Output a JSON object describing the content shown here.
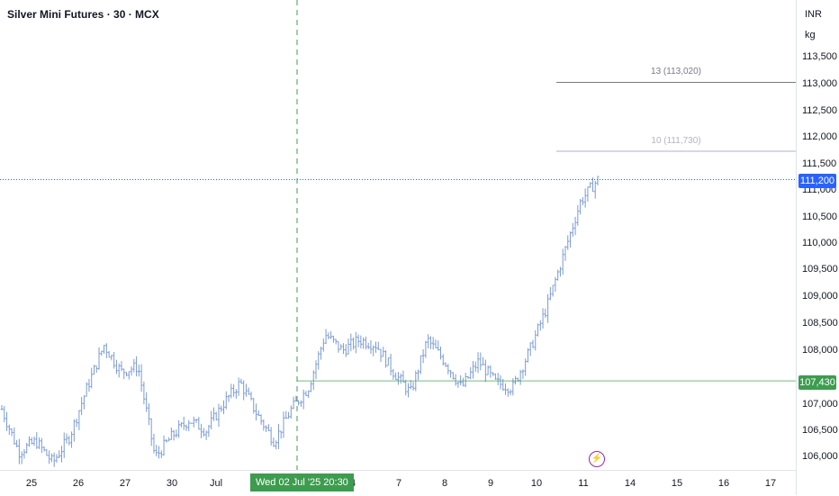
{
  "header": {
    "title": "Silver Mini Futures · 30 · MCX"
  },
  "price_axis": {
    "currency": "INR",
    "unit": "kg",
    "ticks": [
      "113,500",
      "113,000",
      "112,500",
      "112,000",
      "111,500",
      "111,000",
      "110,500",
      "110,000",
      "109,500",
      "109,000",
      "108,500",
      "108,000",
      "107,000",
      "106,500",
      "106,000"
    ],
    "current_price_label": "111,200",
    "crosshair_price_label": "107,430"
  },
  "time_axis": {
    "ticks": [
      "25",
      "26",
      "27",
      "30",
      "Jul",
      "4",
      "7",
      "8",
      "9",
      "10",
      "11",
      "14",
      "15",
      "16",
      "17"
    ],
    "crosshair_time_label": "Wed 02 Jul '25   20:30"
  },
  "horizontal_lines": [
    {
      "label": "13 (113,020)",
      "price": 113020
    },
    {
      "label": "10 (111,730)",
      "price": 111730
    }
  ],
  "colors": {
    "candle": "#7b9bd1",
    "current_price_badge": "#2962ff",
    "crosshair_badge": "#3d9c4e",
    "crosshair_line": "#3d9c4e",
    "level_line_dark": "#787b86",
    "level_line_light": "#b2b5be",
    "event_icon": "#9c27b0"
  },
  "event_icon": "lightning-icon",
  "chart_data": {
    "type": "ohlc",
    "title": "Silver Mini Futures · 30 · MCX",
    "ylim": [
      105800,
      113950
    ],
    "y_ticks": [
      106000,
      106500,
      107000,
      108000,
      108500,
      109000,
      109500,
      110000,
      110500,
      111000,
      111500,
      112000,
      112500,
      113000,
      113500
    ],
    "x_ticks": [
      "25",
      "26",
      "27",
      "30",
      "Jul",
      "4",
      "7",
      "8",
      "9",
      "10",
      "11",
      "14",
      "15",
      "16",
      "17"
    ],
    "current_price": 111200,
    "crosshair": {
      "time": "Wed 02 Jul '25 20:30",
      "price": 107430
    },
    "price_path": [
      {
        "day": "24",
        "price": 106900
      },
      {
        "day": "24",
        "price": 106100
      },
      {
        "day": "25",
        "price": 106300
      },
      {
        "day": "25",
        "price": 105900
      },
      {
        "day": "25",
        "price": 106400
      },
      {
        "day": "26",
        "price": 107300
      },
      {
        "day": "26",
        "price": 108100
      },
      {
        "day": "26",
        "price": 107600
      },
      {
        "day": "27",
        "price": 107700
      },
      {
        "day": "27",
        "price": 106000
      },
      {
        "day": "30",
        "price": 106400
      },
      {
        "day": "30",
        "price": 106700
      },
      {
        "day": "Jul",
        "price": 106500
      },
      {
        "day": "Jul",
        "price": 107000
      },
      {
        "day": "1",
        "price": 107400
      },
      {
        "day": "1",
        "price": 106800
      },
      {
        "day": "1",
        "price": 106300
      },
      {
        "day": "2",
        "price": 106900
      },
      {
        "day": "2",
        "price": 107300
      },
      {
        "day": "3",
        "price": 108300
      },
      {
        "day": "3",
        "price": 108000
      },
      {
        "day": "4",
        "price": 108200
      },
      {
        "day": "4",
        "price": 108100
      },
      {
        "day": "7",
        "price": 107600
      },
      {
        "day": "7",
        "price": 107200
      },
      {
        "day": "8",
        "price": 108200
      },
      {
        "day": "8",
        "price": 107800
      },
      {
        "day": "9",
        "price": 107300
      },
      {
        "day": "9",
        "price": 107800
      },
      {
        "day": "9",
        "price": 107400
      },
      {
        "day": "10",
        "price": 107300
      },
      {
        "day": "10",
        "price": 108000
      },
      {
        "day": "10",
        "price": 108800
      },
      {
        "day": "11",
        "price": 109800
      },
      {
        "day": "11",
        "price": 110800
      },
      {
        "day": "11",
        "price": 111200
      }
    ]
  }
}
